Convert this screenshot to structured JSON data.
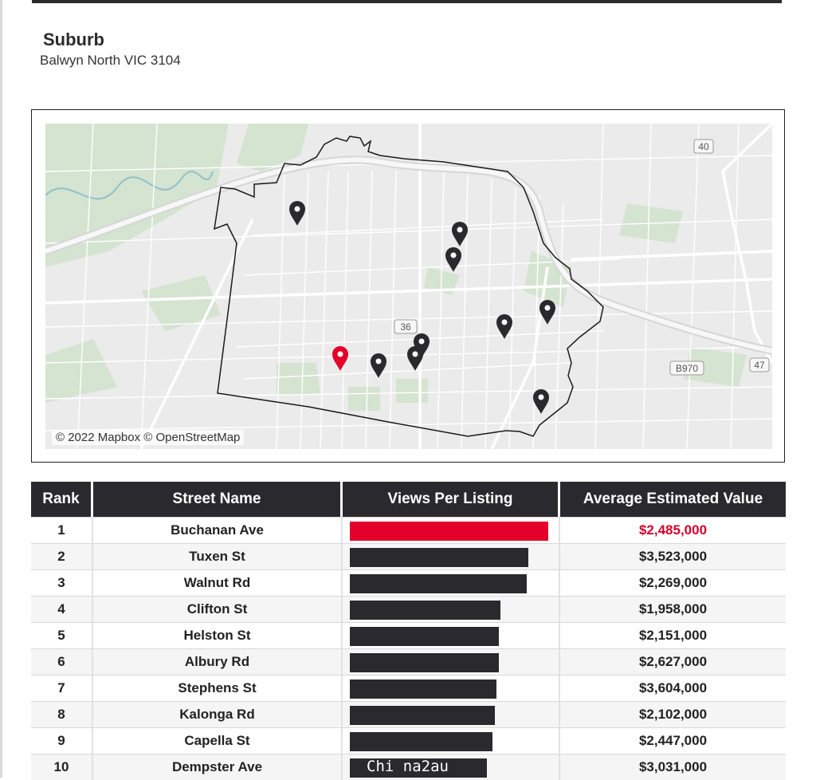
{
  "header": {
    "label": "Suburb",
    "value": "Balwyn North VIC 3104"
  },
  "map": {
    "attribution": "© 2022 Mapbox © OpenStreetMap",
    "road_shields": [
      "40",
      "36",
      "B970",
      "47"
    ],
    "highlight_color": "#e4002b",
    "marker_color": "#2a2a2e"
  },
  "table": {
    "headers": [
      "Rank",
      "Street Name",
      "Views Per Listing",
      "Average Estimated Value"
    ],
    "rows": [
      {
        "rank": "1",
        "street": "Buchanan Ave",
        "views": 1.0,
        "value": "$2,485,000"
      },
      {
        "rank": "2",
        "street": "Tuxen St",
        "views": 0.9,
        "value": "$3,523,000"
      },
      {
        "rank": "3",
        "street": "Walnut Rd",
        "views": 0.89,
        "value": "$2,269,000"
      },
      {
        "rank": "4",
        "street": "Clifton St",
        "views": 0.76,
        "value": "$1,958,000"
      },
      {
        "rank": "5",
        "street": "Helston St",
        "views": 0.75,
        "value": "$2,151,000"
      },
      {
        "rank": "6",
        "street": "Albury Rd",
        "views": 0.75,
        "value": "$2,627,000"
      },
      {
        "rank": "7",
        "street": "Stephens St",
        "views": 0.74,
        "value": "$3,604,000"
      },
      {
        "rank": "8",
        "street": "Kalonga Rd",
        "views": 0.73,
        "value": "$2,102,000"
      },
      {
        "rank": "9",
        "street": "Capella St",
        "views": 0.72,
        "value": "$2,447,000"
      },
      {
        "rank": "10",
        "street": "Dempster Ave",
        "views": 0.69,
        "value": "$3,031,000"
      }
    ],
    "highlight_row": 0
  },
  "watermark": "Chi na2au"
}
